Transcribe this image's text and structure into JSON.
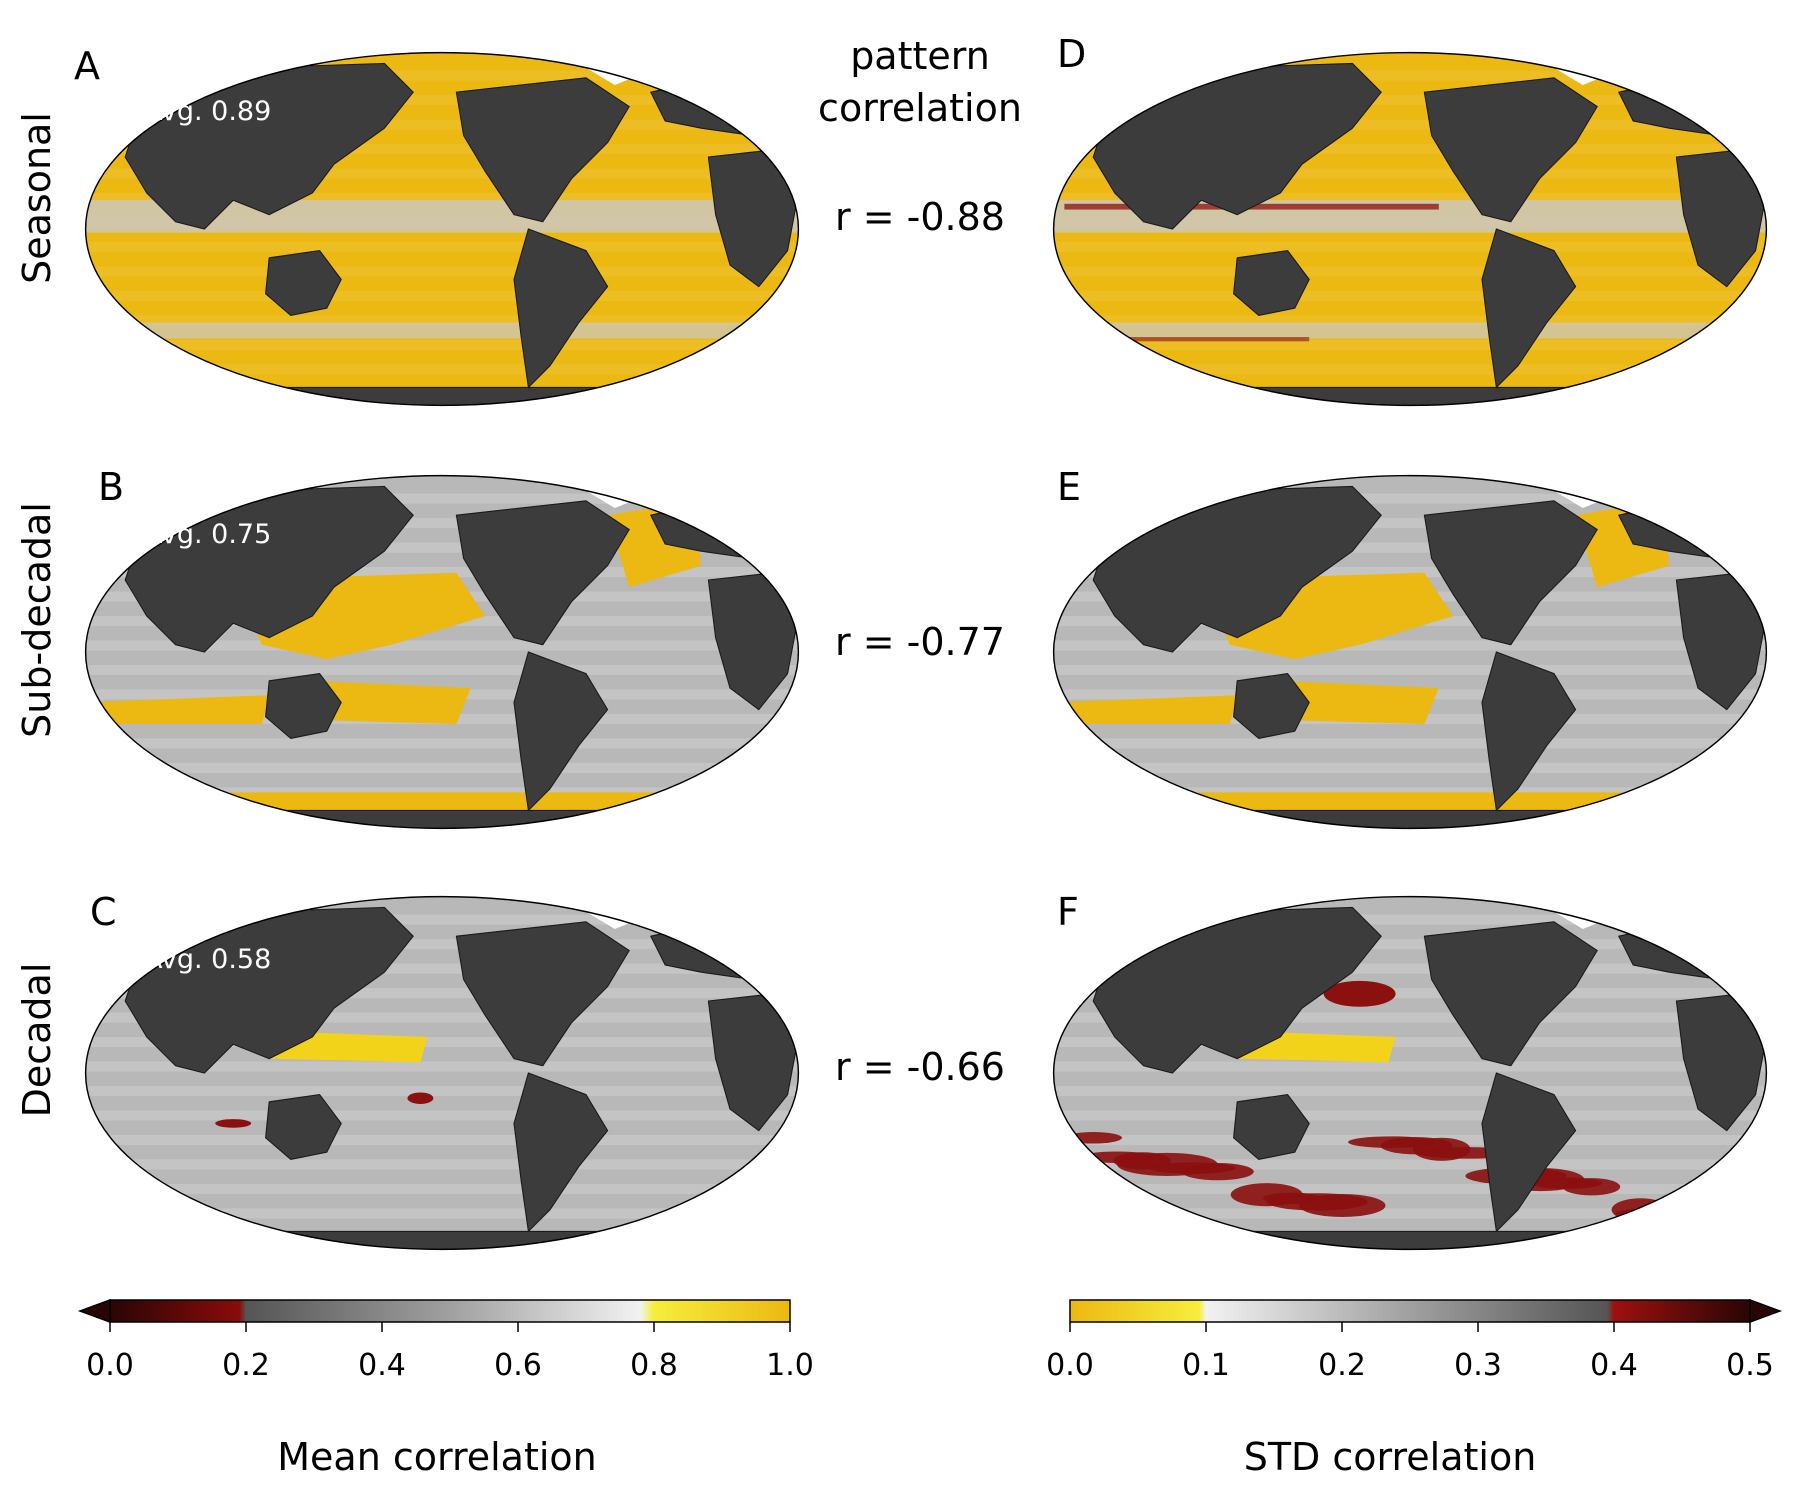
{
  "panels": [
    {
      "letter": "A",
      "avg_label": "Avg. 0.89",
      "kind": "mean",
      "variant": "seasonal"
    },
    {
      "letter": "B",
      "avg_label": "Avg. 0.75",
      "kind": "mean",
      "variant": "subdecadal"
    },
    {
      "letter": "C",
      "avg_label": "Avg. 0.58",
      "kind": "mean",
      "variant": "decadal"
    },
    {
      "letter": "D",
      "avg_label": "",
      "kind": "std",
      "variant": "seasonal"
    },
    {
      "letter": "E",
      "avg_label": "",
      "kind": "std",
      "variant": "subdecadal"
    },
    {
      "letter": "F",
      "avg_label": "",
      "kind": "std",
      "variant": "decadal"
    }
  ],
  "rows": [
    {
      "label": "Seasonal"
    },
    {
      "label": "Sub-decadal"
    },
    {
      "label": "Decadal"
    }
  ],
  "pattern_correlation": {
    "title_line1": "pattern",
    "title_line2": "correlation",
    "values": [
      "r = -0.88",
      "r = -0.77",
      "r = -0.66"
    ]
  },
  "colorbars": {
    "mean": {
      "label": "Mean correlation",
      "ticks": [
        "0.0",
        "0.2",
        "0.4",
        "0.6",
        "0.8",
        "1.0"
      ],
      "range": [
        0.0,
        1.0
      ],
      "colors": {
        "low_red": "#8b0b0b",
        "mid_gray": "#6e6e6e",
        "high_white": "#f2f2f2",
        "yellow": "#f5ee3a",
        "gold": "#ecb812"
      }
    },
    "std": {
      "label": "STD correlation",
      "ticks": [
        "0.0",
        "0.1",
        "0.2",
        "0.3",
        "0.4",
        "0.5"
      ],
      "range": [
        0.0,
        0.5
      ],
      "colors": {
        "gold": "#ecb812",
        "yellow": "#f5ee3a",
        "high_white": "#f2f2f2",
        "mid_gray": "#6e6e6e",
        "red": "#9e1010",
        "dark_red": "#2a0505"
      }
    }
  },
  "colors": {
    "land": "#3c3c3c",
    "ocean_gold": "#ecb812",
    "ocean_gray": "#b8b8b8",
    "dark_red": "#8b1010",
    "ice_white": "#ffffff"
  }
}
